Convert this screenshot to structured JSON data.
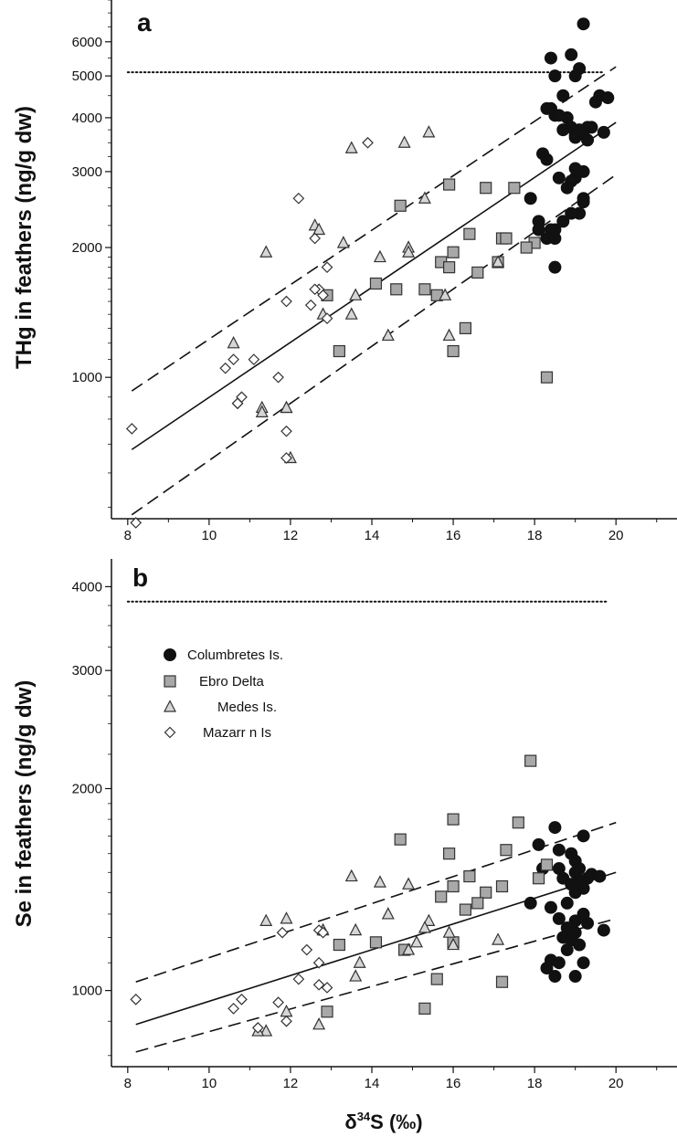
{
  "chart_data": [
    {
      "type": "scatter",
      "panel_label": "a",
      "xlabel": "δ34S (‰)",
      "ylabel": "THg in feathers (ng/g dw)",
      "xlim": [
        7.6,
        21.5
      ],
      "ylim": [
        470,
        7500
      ],
      "yscale": "log",
      "xticks": [
        8,
        10,
        12,
        14,
        16,
        18,
        20
      ],
      "yticks": [
        1000,
        2000,
        3000,
        4000,
        5000,
        6000
      ],
      "reference_line": {
        "y": 5100,
        "x": [
          8,
          19.7
        ],
        "style": "dotted"
      },
      "fit": {
        "x": [
          8.1,
          20.0
        ],
        "y": [
          680,
          3900
        ]
      },
      "ci_upper": {
        "x": [
          8.1,
          20.0
        ],
        "y": [
          930,
          5250
        ]
      },
      "ci_lower": {
        "x": [
          8.1,
          20.0
        ],
        "y": [
          480,
          2950
        ]
      },
      "series": [
        {
          "name": "Columbretes Is.",
          "marker": "circle",
          "fill": "#111111",
          "x": [
            19.2,
            18.4,
            18.9,
            19.1,
            18.7,
            19.0,
            18.5,
            18.4,
            18.8,
            19.3,
            19.6,
            18.3,
            18.5,
            18.6,
            19.5,
            19.7,
            18.9,
            19.1,
            19.2,
            19.0,
            18.7,
            19.4,
            19.8,
            18.2,
            18.3,
            19.2,
            18.6,
            19.0,
            18.1,
            18.9,
            18.5,
            18.7,
            19.2,
            18.8,
            18.3,
            18.5,
            17.9,
            18.1,
            18.4,
            18.5,
            19.0,
            19.1,
            18.9,
            19.2,
            19.0,
            19.3
          ],
          "y": [
            6600,
            5500,
            5600,
            5200,
            4500,
            5000,
            5000,
            4200,
            4000,
            3800,
            4500,
            4200,
            4050,
            4050,
            4350,
            3700,
            3800,
            3750,
            3700,
            3650,
            3750,
            3800,
            4450,
            3300,
            3200,
            3000,
            2900,
            2900,
            2300,
            2850,
            2200,
            2300,
            2600,
            2750,
            2100,
            2100,
            2600,
            2200,
            2200,
            1800,
            3050,
            2400,
            2400,
            2550,
            3600,
            3550
          ]
        },
        {
          "name": "Ebro Delta",
          "marker": "square",
          "fill": "#a8a8a8",
          "x": [
            15.9,
            16.8,
            17.5,
            14.7,
            16.4,
            17.2,
            17.3,
            15.7,
            16.0,
            15.9,
            16.6,
            17.1,
            18.0,
            17.8,
            14.1,
            14.6,
            15.3,
            15.6,
            12.9,
            16.3,
            13.2,
            16.0,
            18.3
          ],
          "y": [
            2800,
            2750,
            2750,
            2500,
            2150,
            2100,
            2100,
            1850,
            1950,
            1800,
            1750,
            1850,
            2050,
            2000,
            1650,
            1600,
            1600,
            1550,
            1550,
            1300,
            1150,
            1150,
            1000
          ]
        },
        {
          "name": "Medes Is.",
          "marker": "triangle",
          "fill": "#d6d6d6",
          "x": [
            15.4,
            14.8,
            13.5,
            15.3,
            12.6,
            11.4,
            13.3,
            14.2,
            14.9,
            14.9,
            12.7,
            10.6,
            13.6,
            12.8,
            13.5,
            14.4,
            15.9,
            15.8,
            17.1,
            11.9,
            11.3,
            11.3,
            11.9,
            12.0
          ],
          "y": [
            3700,
            3500,
            3400,
            2600,
            2250,
            1950,
            2050,
            1900,
            2000,
            1950,
            2200,
            1200,
            1550,
            1400,
            1400,
            1250,
            1250,
            1550,
            1850,
            850,
            850,
            830,
            850,
            650
          ]
        },
        {
          "name": "Mazarr n Is",
          "marker": "diamond",
          "fill": "#ffffff",
          "x": [
            13.9,
            12.2,
            12.6,
            12.7,
            12.9,
            11.9,
            12.6,
            12.8,
            12.5,
            12.9,
            11.1,
            10.6,
            10.4,
            11.7,
            10.8,
            10.7,
            10.7,
            11.9,
            8.1,
            11.9,
            8.2
          ],
          "y": [
            3500,
            2600,
            2100,
            1600,
            1800,
            1500,
            1600,
            1550,
            1470,
            1370,
            1100,
            1100,
            1050,
            1000,
            900,
            870,
            870,
            750,
            760,
            650,
            460
          ]
        }
      ]
    },
    {
      "type": "scatter",
      "panel_label": "b",
      "xlabel": "δ34S (‰)",
      "ylabel": "Se in feathers (ng/g dw)",
      "xlim": [
        7.6,
        21.5
      ],
      "ylim": [
        770,
        4400
      ],
      "yscale": "log",
      "xticks": [
        8,
        10,
        12,
        14,
        16,
        18,
        20
      ],
      "yticks": [
        1000,
        2000,
        3000,
        4000
      ],
      "reference_line": {
        "y": 3800,
        "x": [
          8,
          19.8
        ],
        "style": "dotted"
      },
      "fit": {
        "x": [
          8.2,
          20.0
        ],
        "y": [
          890,
          1500
        ]
      },
      "ci_upper": {
        "x": [
          8.2,
          20.0
        ],
        "y": [
          1030,
          1780
        ]
      },
      "ci_lower": {
        "x": [
          8.2,
          20.0
        ],
        "y": [
          810,
          1280
        ]
      },
      "series": [
        {
          "name": "Columbretes Is.",
          "marker": "circle",
          "fill": "#111111",
          "x": [
            18.5,
            19.2,
            18.1,
            18.6,
            18.9,
            19.0,
            19.1,
            18.2,
            18.6,
            19.0,
            19.4,
            19.6,
            19.3,
            18.7,
            19.1,
            18.9,
            19.2,
            19.0,
            17.9,
            18.8,
            18.4,
            19.2,
            18.6,
            19.0,
            19.3,
            18.8,
            19.7,
            19.0,
            18.7,
            18.9,
            19.1,
            18.8,
            18.4,
            18.6,
            18.3,
            18.5,
            19.2,
            19.0
          ],
          "y": [
            1750,
            1700,
            1650,
            1620,
            1600,
            1560,
            1520,
            1520,
            1520,
            1500,
            1490,
            1480,
            1470,
            1470,
            1460,
            1440,
            1420,
            1400,
            1350,
            1350,
            1330,
            1300,
            1280,
            1270,
            1260,
            1240,
            1230,
            1220,
            1200,
            1190,
            1170,
            1150,
            1110,
            1100,
            1080,
            1050,
            1100,
            1050
          ]
        },
        {
          "name": "Ebro Delta",
          "marker": "square",
          "fill": "#a8a8a8",
          "x": [
            17.9,
            16.0,
            17.6,
            14.7,
            15.9,
            17.3,
            16.4,
            18.1,
            16.0,
            17.2,
            16.8,
            15.7,
            16.6,
            16.3,
            13.2,
            14.1,
            14.8,
            16.0,
            15.6,
            15.3,
            12.9,
            17.2,
            18.3
          ],
          "y": [
            2200,
            1800,
            1780,
            1680,
            1600,
            1620,
            1480,
            1470,
            1430,
            1430,
            1400,
            1380,
            1350,
            1320,
            1170,
            1180,
            1150,
            1180,
            1040,
            940,
            930,
            1030,
            1540
          ]
        },
        {
          "name": "Medes Is.",
          "marker": "triangle",
          "fill": "#d6d6d6",
          "x": [
            13.5,
            11.4,
            11.9,
            14.2,
            14.9,
            15.4,
            14.4,
            15.3,
            13.6,
            15.9,
            15.1,
            17.1,
            13.7,
            14.9,
            12.8,
            13.6,
            16.0,
            11.4,
            11.2,
            11.9,
            12.7
          ],
          "y": [
            1480,
            1270,
            1280,
            1450,
            1440,
            1270,
            1300,
            1240,
            1230,
            1220,
            1180,
            1190,
            1100,
            1150,
            1230,
            1050,
            1170,
            870,
            870,
            930,
            890
          ]
        },
        {
          "name": "Mazarr n Is",
          "marker": "diamond",
          "fill": "#ffffff",
          "x": [
            12.7,
            11.8,
            12.8,
            12.4,
            12.7,
            12.2,
            12.7,
            12.9,
            10.8,
            11.7,
            10.6,
            11.9,
            11.2,
            8.2
          ],
          "y": [
            1230,
            1220,
            1220,
            1150,
            1100,
            1040,
            1020,
            1010,
            970,
            960,
            940,
            900,
            880,
            970
          ]
        }
      ],
      "legend": {
        "position": "top-left",
        "entries": [
          "Columbretes Is.",
          "Ebro Delta",
          "Medes Is.",
          "Mazarr n Is"
        ]
      }
    }
  ]
}
